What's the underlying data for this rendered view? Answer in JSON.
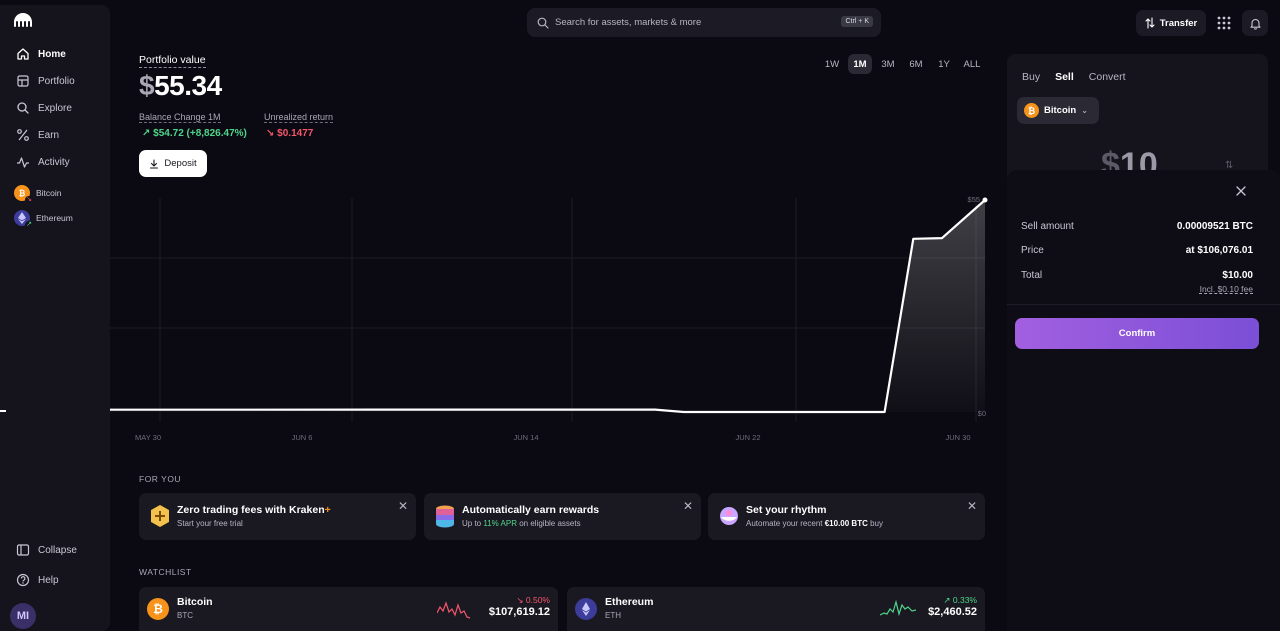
{
  "sidebar": {
    "nav": [
      {
        "label": "Home",
        "icon": "home-icon"
      },
      {
        "label": "Portfolio",
        "icon": "portfolio-icon"
      },
      {
        "label": "Explore",
        "icon": "search-icon"
      },
      {
        "label": "Earn",
        "icon": "percent-icon"
      },
      {
        "label": "Activity",
        "icon": "activity-icon"
      }
    ],
    "assets": [
      {
        "label": "Bitcoin",
        "trend": "down"
      },
      {
        "label": "Ethereum",
        "trend": "up"
      }
    ],
    "collapse_label": "Collapse",
    "help_label": "Help",
    "avatar_initials": "MI"
  },
  "topbar": {
    "search_placeholder": "Search for assets, markets & more",
    "search_shortcut": "Ctrl + K",
    "transfer_label": "Transfer"
  },
  "portfolio": {
    "label": "Portfolio value",
    "value_symbol": "$",
    "value": "55.34",
    "balance_change_label": "Balance Change 1M",
    "balance_change_value": "$54.72 (+8,826.47%)",
    "unrealized_label": "Unrealized return",
    "unrealized_value": "$0.1477",
    "deposit_label": "Deposit",
    "ranges": [
      "1W",
      "1M",
      "3M",
      "6M",
      "1Y",
      "ALL"
    ],
    "active_range": "1M"
  },
  "chart_data": {
    "type": "area",
    "x_ticks": [
      "MAY 30",
      "JUN 6",
      "JUN 14",
      "JUN 22",
      "JUN 30"
    ],
    "y_labels": [
      "$55",
      "$0"
    ],
    "ylim": [
      0,
      55.34
    ],
    "points": [
      {
        "d": 0,
        "v": 0.6
      },
      {
        "d": 5,
        "v": 0.6
      },
      {
        "d": 10,
        "v": 0.62
      },
      {
        "d": 15,
        "v": 0.62
      },
      {
        "d": 19,
        "v": 0.62
      },
      {
        "d": 20,
        "v": 0.0
      },
      {
        "d": 27,
        "v": 0.0
      },
      {
        "d": 28,
        "v": 45.2
      },
      {
        "d": 29,
        "v": 45.4
      },
      {
        "d": 30.5,
        "v": 55.34
      }
    ],
    "line_color": "#ffffff"
  },
  "for_you": {
    "title": "FOR YOU",
    "cards": [
      {
        "title": "Zero trading fees with Kraken",
        "title_suffix": "+",
        "sub": "Start your free trial"
      },
      {
        "title": "Automatically earn rewards",
        "sub_prefix": "Up to ",
        "sub_highlight": "11% APR",
        "sub_suffix": " on eligible assets"
      },
      {
        "title": "Set your rhythm",
        "sub_prefix": "Automate your recent ",
        "sub_highlight": "€10.00 BTC",
        "sub_suffix": " buy"
      }
    ]
  },
  "watchlist": {
    "title": "WATCHLIST",
    "items": [
      {
        "name": "Bitcoin",
        "symbol": "BTC",
        "change": "↘ 0.50%",
        "price": "$107,619.12",
        "trend": "down"
      },
      {
        "name": "Ethereum",
        "symbol": "ETH",
        "change": "↗ 0.33%",
        "price": "$2,460.52",
        "trend": "up"
      }
    ]
  },
  "trade": {
    "tabs": [
      "Buy",
      "Sell",
      "Convert"
    ],
    "active_tab": "Sell",
    "asset": "Bitcoin",
    "amount_symbol": "$",
    "amount": "10",
    "summary": {
      "sell_amount_label": "Sell amount",
      "sell_amount_value": "0.00009521 BTC",
      "price_label": "Price",
      "price_value": "at $106,076.01",
      "total_label": "Total",
      "total_value": "$10.00",
      "fee_note": "Incl. $0.10 fee"
    },
    "confirm_label": "Confirm"
  },
  "colors": {
    "accent_start": "#a25fe0",
    "accent_end": "#7b4fd6",
    "up": "#4fd58b",
    "down": "#f4566b",
    "btc": "#f7931a"
  }
}
